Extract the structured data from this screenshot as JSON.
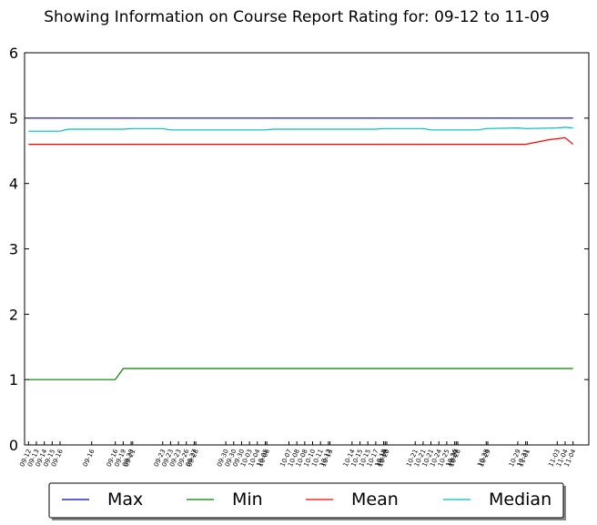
{
  "chart_data": {
    "type": "line",
    "title": "Showing Information on Course Report Rating for: 09-12 to 11-09",
    "xlabel": "",
    "ylabel": "",
    "ylim": [
      0,
      6
    ],
    "yticks": [
      0,
      1,
      2,
      3,
      4,
      5,
      6
    ],
    "grid": false,
    "legend_position": "bottom",
    "x_ticks": [
      {
        "x": 0,
        "label": "09-12"
      },
      {
        "x": 1,
        "label": "09-13"
      },
      {
        "x": 2,
        "label": "09-14"
      },
      {
        "x": 3,
        "label": "09-15"
      },
      {
        "x": 4,
        "label": "09-16"
      },
      {
        "x": 8,
        "label": "09-16"
      },
      {
        "x": 11,
        "label": "09-16"
      },
      {
        "x": 12,
        "label": "09-19"
      },
      {
        "x": 13,
        "label": "09-20"
      },
      {
        "x": 13.2,
        "label": "09-21"
      },
      {
        "x": 17,
        "label": "09-23"
      },
      {
        "x": 18,
        "label": "09-23"
      },
      {
        "x": 19,
        "label": "09-23"
      },
      {
        "x": 20,
        "label": "09-26"
      },
      {
        "x": 21,
        "label": "09-27"
      },
      {
        "x": 21.2,
        "label": "09-28"
      },
      {
        "x": 25,
        "label": "09-30"
      },
      {
        "x": 26,
        "label": "09-30"
      },
      {
        "x": 27,
        "label": "09-30"
      },
      {
        "x": 28,
        "label": "10-03"
      },
      {
        "x": 29,
        "label": "10-04"
      },
      {
        "x": 30,
        "label": "10-05"
      },
      {
        "x": 30.2,
        "label": "10-06"
      },
      {
        "x": 33,
        "label": "10-07"
      },
      {
        "x": 34,
        "label": "10-08"
      },
      {
        "x": 35,
        "label": "10-08"
      },
      {
        "x": 36,
        "label": "10-10"
      },
      {
        "x": 37,
        "label": "10-11"
      },
      {
        "x": 38,
        "label": "10-12"
      },
      {
        "x": 38.2,
        "label": "10-13"
      },
      {
        "x": 41,
        "label": "10-14"
      },
      {
        "x": 42,
        "label": "10-15"
      },
      {
        "x": 43,
        "label": "10-15"
      },
      {
        "x": 44,
        "label": "10-17"
      },
      {
        "x": 45,
        "label": "10-18"
      },
      {
        "x": 45.2,
        "label": "10-19"
      },
      {
        "x": 45.4,
        "label": "10-20"
      },
      {
        "x": 49,
        "label": "10-21"
      },
      {
        "x": 50,
        "label": "10-21"
      },
      {
        "x": 51,
        "label": "10-21"
      },
      {
        "x": 52,
        "label": "10-24"
      },
      {
        "x": 53,
        "label": "10-25"
      },
      {
        "x": 54,
        "label": "10-26"
      },
      {
        "x": 54.2,
        "label": "10-27"
      },
      {
        "x": 54.4,
        "label": "10-28"
      },
      {
        "x": 58,
        "label": "10-28"
      },
      {
        "x": 58.2,
        "label": "10-29"
      },
      {
        "x": 62,
        "label": "10-29"
      },
      {
        "x": 63,
        "label": "10-31"
      },
      {
        "x": 63.2,
        "label": "11-01"
      },
      {
        "x": 67,
        "label": "11-03"
      },
      {
        "x": 68,
        "label": "11-04"
      },
      {
        "x": 69,
        "label": "11-04"
      }
    ],
    "xlim": [
      -0.5,
      71
    ],
    "series": [
      {
        "name": "Max",
        "color": "#0000bf",
        "x": [
          0,
          69
        ],
        "values": [
          5.0,
          5.0
        ]
      },
      {
        "name": "Min",
        "color": "#008000",
        "x": [
          0,
          11,
          12,
          69
        ],
        "values": [
          1.0,
          1.0,
          1.17,
          1.17
        ]
      },
      {
        "name": "Mean",
        "color": "#ff0000",
        "x": [
          0,
          63,
          66,
          68,
          69
        ],
        "values": [
          4.6,
          4.6,
          4.67,
          4.7,
          4.6
        ]
      },
      {
        "name": "Median",
        "color": "#00bfbf",
        "x": [
          0,
          4,
          5,
          12,
          13,
          17,
          18,
          30,
          31,
          44,
          45,
          50,
          51,
          57,
          58,
          62,
          63,
          67,
          68,
          69
        ],
        "values": [
          4.8,
          4.8,
          4.83,
          4.83,
          4.84,
          4.84,
          4.82,
          4.82,
          4.83,
          4.83,
          4.84,
          4.84,
          4.82,
          4.82,
          4.84,
          4.85,
          4.84,
          4.85,
          4.86,
          4.85
        ]
      }
    ]
  }
}
